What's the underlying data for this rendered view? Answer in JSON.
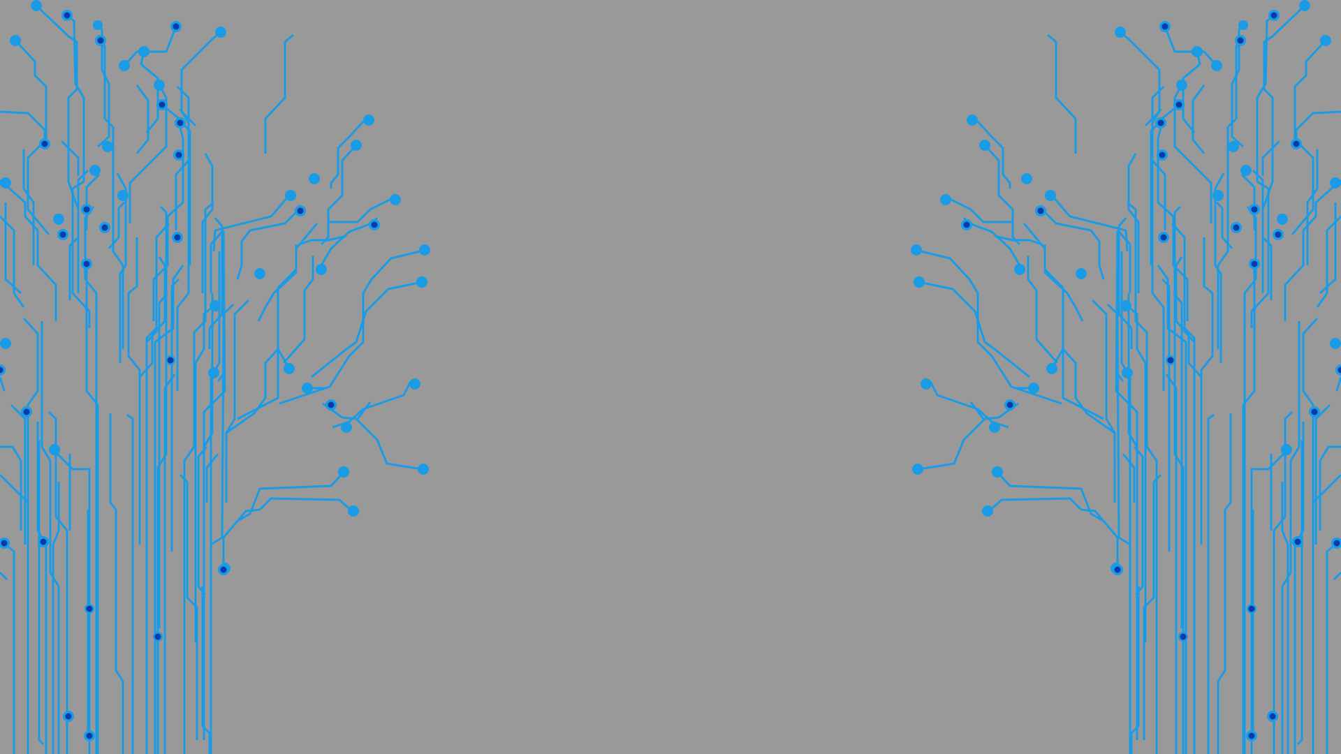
{
  "background": {
    "description_color": "#999999",
    "trace_color": "#1a9be6",
    "pad_outer_color": "#1a9be6",
    "pad_inner_color": "#0a3aa8"
  },
  "artwork": {
    "left_circuit_icon": "circuit-board-traces",
    "right_circuit_icon": "circuit-board-traces"
  }
}
